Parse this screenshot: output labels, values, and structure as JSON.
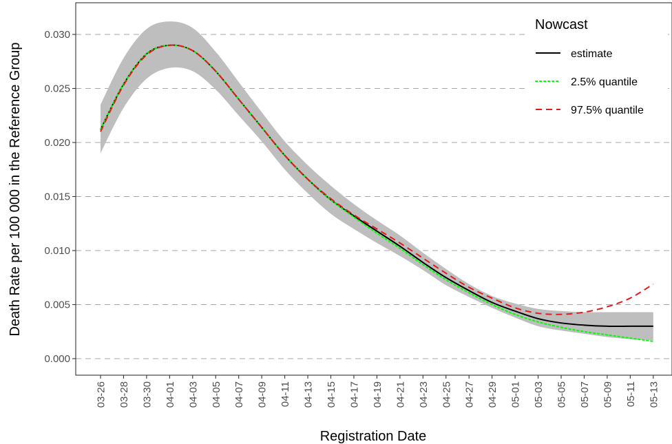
{
  "chart_data": {
    "type": "line",
    "xlabel": "Registration Date",
    "ylabel": "Death Rate per 100 000 in the Reference Group",
    "ylim": [
      0.0,
      0.033
    ],
    "xlim": [
      "03-24",
      "05-15"
    ],
    "y_ticks": [
      "0.000",
      "0.005",
      "0.010",
      "0.015",
      "0.020",
      "0.025",
      "0.030"
    ],
    "y_tick_values": [
      0.0,
      0.005,
      0.01,
      0.015,
      0.02,
      0.025,
      0.03
    ],
    "x_ticks": [
      "03-26",
      "03-28",
      "03-30",
      "04-01",
      "04-03",
      "04-05",
      "04-07",
      "04-09",
      "04-11",
      "04-13",
      "04-15",
      "04-17",
      "04-19",
      "04-21",
      "04-23",
      "04-25",
      "04-27",
      "04-29",
      "05-01",
      "05-03",
      "05-05",
      "05-07",
      "05-09",
      "05-11",
      "05-13"
    ],
    "grid": "horizontal dashed",
    "legend": {
      "title": "Nowcast",
      "position": "top-right"
    },
    "x": [
      "03-26",
      "03-28",
      "03-30",
      "04-01",
      "04-03",
      "04-05",
      "04-07",
      "04-09",
      "04-11",
      "04-13",
      "04-15",
      "04-17",
      "04-19",
      "04-21",
      "04-23",
      "04-25",
      "04-27",
      "04-29",
      "05-01",
      "05-03",
      "05-05",
      "05-07",
      "05-09",
      "05-11",
      "05-13"
    ],
    "series": [
      {
        "name": "estimate",
        "color": "#000000",
        "dash": "solid",
        "values": [
          0.0212,
          0.0254,
          0.0282,
          0.029,
          0.0285,
          0.0266,
          0.024,
          0.0214,
          0.0188,
          0.0166,
          0.0147,
          0.0132,
          0.0118,
          0.0104,
          0.0089,
          0.0075,
          0.0063,
          0.0052,
          0.0044,
          0.0037,
          0.0033,
          0.0031,
          0.003,
          0.003,
          0.003
        ]
      },
      {
        "name": "2.5% quantile",
        "color": "#00ff00",
        "dash": "dotted",
        "values": [
          0.0212,
          0.0254,
          0.0282,
          0.029,
          0.0285,
          0.0266,
          0.024,
          0.0214,
          0.0188,
          0.0166,
          0.0147,
          0.0131,
          0.0116,
          0.0102,
          0.0087,
          0.0073,
          0.0061,
          0.005,
          0.0041,
          0.0034,
          0.0029,
          0.0025,
          0.0022,
          0.0019,
          0.0016
        ]
      },
      {
        "name": "97.5% quantile",
        "color": "#e41a1c",
        "dash": "dashed",
        "values": [
          0.021,
          0.0253,
          0.0281,
          0.029,
          0.0285,
          0.0266,
          0.024,
          0.0214,
          0.0188,
          0.0166,
          0.0148,
          0.0133,
          0.012,
          0.0107,
          0.0093,
          0.0079,
          0.0066,
          0.0056,
          0.0047,
          0.0042,
          0.0041,
          0.0043,
          0.0048,
          0.0056,
          0.0069
        ]
      }
    ],
    "band": {
      "color": "#bebebe",
      "upper": [
        0.0235,
        0.0278,
        0.0305,
        0.0312,
        0.0306,
        0.0284,
        0.0256,
        0.0228,
        0.0201,
        0.0179,
        0.016,
        0.0143,
        0.0128,
        0.0114,
        0.0098,
        0.0083,
        0.0069,
        0.0058,
        0.0051,
        0.0046,
        0.0044,
        0.0043,
        0.0043,
        0.0043,
        0.0043
      ],
      "lower": [
        0.019,
        0.0232,
        0.0259,
        0.0269,
        0.0266,
        0.0249,
        0.0225,
        0.0201,
        0.0175,
        0.0153,
        0.0134,
        0.012,
        0.0107,
        0.0095,
        0.0082,
        0.0068,
        0.0057,
        0.0047,
        0.0038,
        0.003,
        0.0026,
        0.0023,
        0.002,
        0.0018,
        0.0017
      ]
    }
  }
}
